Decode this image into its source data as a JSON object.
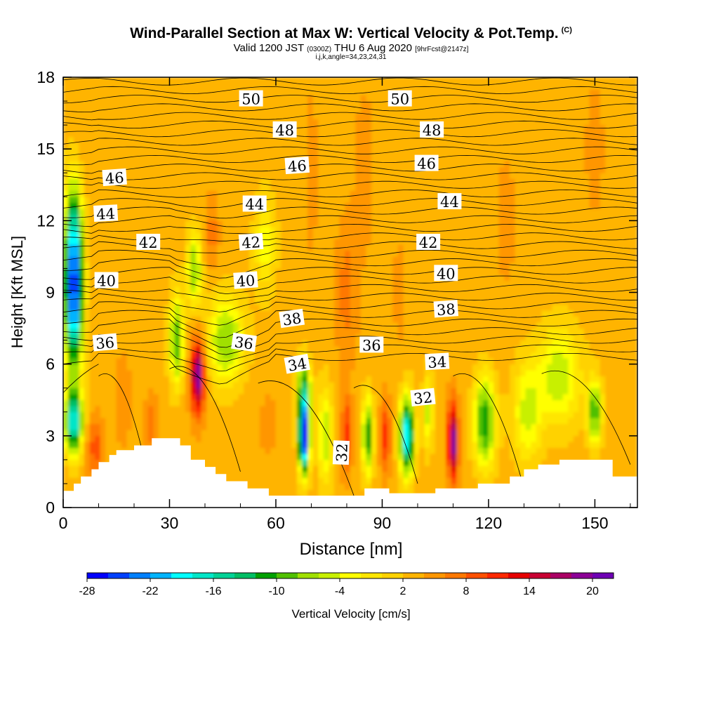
{
  "title": {
    "main": "Wind-Parallel Section at Max W: Vertical Velocity & Pot.Temp.",
    "copyright": "(C)",
    "valid_pre": "Valid 1200 JST",
    "valid_utc": "(0300Z)",
    "valid_date": "THU 6 Aug 2020",
    "forecast": "[9hrFcst@2147z]",
    "indices": "i,j,k,angle=34,23,24,31"
  },
  "chart_data": {
    "type": "contour",
    "xlabel": "Distance [nm]",
    "ylabel": "Height [Kft MSL]",
    "xlim": [
      0,
      162
    ],
    "ylim": [
      0,
      18
    ],
    "xticks": [
      0,
      30,
      60,
      90,
      120,
      150
    ],
    "yticks": [
      0,
      3,
      6,
      9,
      12,
      15,
      18
    ],
    "colorbar": {
      "label": "Vertical Velocity [cm/s]",
      "min": -28,
      "max": 22,
      "step": 2,
      "tick_labels": [
        -28,
        -22,
        -16,
        -10,
        -4,
        2,
        8,
        14,
        20
      ],
      "colors": [
        "#0000ff",
        "#0040ff",
        "#0080ff",
        "#00b4ff",
        "#00ffff",
        "#00e6c8",
        "#00d296",
        "#00be64",
        "#00a000",
        "#50c000",
        "#a0e000",
        "#c8f000",
        "#ffff00",
        "#ffe600",
        "#ffd200",
        "#ffb400",
        "#ff9600",
        "#ff7800",
        "#ff5000",
        "#ff2800",
        "#e60000",
        "#c80032",
        "#aa0064",
        "#8c0096",
        "#6e00b4"
      ]
    },
    "terrain_kft": [
      [
        0,
        0.7
      ],
      [
        3,
        0.7
      ],
      [
        3,
        1
      ],
      [
        5,
        1
      ],
      [
        5,
        1.3
      ],
      [
        8,
        1.3
      ],
      [
        8,
        1.6
      ],
      [
        10,
        1.6
      ],
      [
        10,
        1.9
      ],
      [
        13,
        1.9
      ],
      [
        13,
        2.2
      ],
      [
        15,
        2.2
      ],
      [
        15,
        2.4
      ],
      [
        20,
        2.4
      ],
      [
        20,
        2.6
      ],
      [
        25,
        2.6
      ],
      [
        25,
        2.9
      ],
      [
        33,
        2.9
      ],
      [
        33,
        2.6
      ],
      [
        36,
        2.6
      ],
      [
        36,
        2
      ],
      [
        40,
        2
      ],
      [
        40,
        1.7
      ],
      [
        43,
        1.7
      ],
      [
        43,
        1.4
      ],
      [
        46,
        1.4
      ],
      [
        46,
        1.1
      ],
      [
        52,
        1.1
      ],
      [
        52,
        0.8
      ],
      [
        58,
        0.8
      ],
      [
        58,
        0.5
      ],
      [
        85,
        0.5
      ],
      [
        85,
        0.8
      ],
      [
        92,
        0.8
      ],
      [
        92,
        0.6
      ],
      [
        105,
        0.6
      ],
      [
        105,
        0.8
      ],
      [
        117,
        0.8
      ],
      [
        117,
        1
      ],
      [
        126,
        1
      ],
      [
        126,
        1.3
      ],
      [
        130,
        1.3
      ],
      [
        130,
        1.6
      ],
      [
        134,
        1.6
      ],
      [
        134,
        1.8
      ],
      [
        140,
        1.8
      ],
      [
        140,
        2
      ],
      [
        155,
        2
      ],
      [
        155,
        1.3
      ],
      [
        162,
        1.3
      ]
    ],
    "w_field": [
      {
        "x": 3,
        "y": 8.5,
        "w": -22,
        "sx": 2.5,
        "sy": 2.8
      },
      {
        "x": 3,
        "y": 11.5,
        "w": -12,
        "sx": 2.5,
        "sy": 2.5
      },
      {
        "x": 3,
        "y": 3.6,
        "w": -18,
        "sx": 2.5,
        "sy": 1.3
      },
      {
        "x": 9,
        "y": 2.5,
        "w": 9,
        "sx": 2.5,
        "sy": 1.3
      },
      {
        "x": 17,
        "y": 4.5,
        "w": 6,
        "sx": 2,
        "sy": 2
      },
      {
        "x": 25,
        "y": 3.5,
        "w": 7,
        "sx": 2,
        "sy": 1.3
      },
      {
        "x": 32,
        "y": 7,
        "w": -10,
        "sx": 2,
        "sy": 1.8
      },
      {
        "x": 38,
        "y": 5.5,
        "w": 20,
        "sx": 2,
        "sy": 1.6
      },
      {
        "x": 37,
        "y": 10,
        "w": -8,
        "sx": 2,
        "sy": 1.5
      },
      {
        "x": 46,
        "y": 7,
        "w": -8,
        "sx": 5,
        "sy": 1.8
      },
      {
        "x": 42,
        "y": 11.5,
        "w": 7,
        "sx": 2,
        "sy": 1.5
      },
      {
        "x": 68,
        "y": 3,
        "w": -28,
        "sx": 1.5,
        "sy": 1.5
      },
      {
        "x": 68,
        "y": 5,
        "w": -10,
        "sx": 2,
        "sy": 1.2
      },
      {
        "x": 74,
        "y": 3,
        "w": -6,
        "sx": 2,
        "sy": 2
      },
      {
        "x": 80,
        "y": 3,
        "w": 11,
        "sx": 1.5,
        "sy": 1.6
      },
      {
        "x": 86,
        "y": 3,
        "w": -12,
        "sx": 1.5,
        "sy": 1.6
      },
      {
        "x": 91,
        "y": 3,
        "w": 11,
        "sx": 1.5,
        "sy": 1.5
      },
      {
        "x": 97,
        "y": 3,
        "w": -20,
        "sx": 2,
        "sy": 1.6
      },
      {
        "x": 103,
        "y": 4,
        "w": -5,
        "sx": 1.5,
        "sy": 1.5
      },
      {
        "x": 110,
        "y": 2.8,
        "w": 20,
        "sx": 1.5,
        "sy": 1.6
      },
      {
        "x": 119,
        "y": 3.6,
        "w": -12,
        "sx": 3,
        "sy": 1.8
      },
      {
        "x": 131,
        "y": 4,
        "w": -5,
        "sx": 4,
        "sy": 2
      },
      {
        "x": 140,
        "y": 5.5,
        "w": -6,
        "sx": 6,
        "sy": 2
      },
      {
        "x": 150,
        "y": 4,
        "w": -10,
        "sx": 2,
        "sy": 1.3
      },
      {
        "x": 80,
        "y": 9,
        "w": 7,
        "sx": 3,
        "sy": 3
      },
      {
        "x": 70,
        "y": 14,
        "w": 5,
        "sx": 2,
        "sy": 4
      },
      {
        "x": 85,
        "y": 14,
        "w": 5,
        "sx": 3,
        "sy": 4
      },
      {
        "x": 95,
        "y": 9,
        "w": 5,
        "sx": 2,
        "sy": 2.5
      },
      {
        "x": 125,
        "y": 12,
        "w": 5,
        "sx": 3,
        "sy": 3
      },
      {
        "x": 150,
        "y": 15,
        "w": 5,
        "sx": 3,
        "sy": 3
      },
      {
        "x": 8,
        "y": 15.5,
        "w": 4,
        "sx": 4,
        "sy": 2
      },
      {
        "x": 57,
        "y": 11,
        "w": -3,
        "sx": 3,
        "sy": 2
      },
      {
        "x": 58,
        "y": 3.5,
        "w": 5,
        "sx": 3,
        "sy": 1.5
      }
    ],
    "theta_contour_labels": [
      {
        "value": "50",
        "x": 53,
        "y": 17.1,
        "angle": 0
      },
      {
        "value": "50",
        "x": 95,
        "y": 17.1,
        "angle": 0
      },
      {
        "value": "48",
        "x": 62.5,
        "y": 15.8,
        "angle": 0
      },
      {
        "value": "48",
        "x": 104,
        "y": 15.8,
        "angle": 0
      },
      {
        "value": "46",
        "x": 14.5,
        "y": 13.8,
        "angle": -4
      },
      {
        "value": "46",
        "x": 66,
        "y": 14.3,
        "angle": -4
      },
      {
        "value": "46",
        "x": 102.5,
        "y": 14.4,
        "angle": 0
      },
      {
        "value": "44",
        "x": 12,
        "y": 12.3,
        "angle": -3
      },
      {
        "value": "44",
        "x": 54,
        "y": 12.7,
        "angle": 0
      },
      {
        "value": "44",
        "x": 109,
        "y": 12.8,
        "angle": 0
      },
      {
        "value": "42",
        "x": 24,
        "y": 11.1,
        "angle": 0
      },
      {
        "value": "42",
        "x": 53,
        "y": 11.1,
        "angle": -4
      },
      {
        "value": "42",
        "x": 103,
        "y": 11.1,
        "angle": 0
      },
      {
        "value": "40",
        "x": 12.2,
        "y": 9.5,
        "angle": 0
      },
      {
        "value": "40",
        "x": 51.5,
        "y": 9.5,
        "angle": -4
      },
      {
        "value": "40",
        "x": 108,
        "y": 9.8,
        "angle": 0
      },
      {
        "value": "38",
        "x": 64.5,
        "y": 7.9,
        "angle": -8
      },
      {
        "value": "38",
        "x": 108,
        "y": 8.3,
        "angle": -4
      },
      {
        "value": "36",
        "x": 11.8,
        "y": 6.9,
        "angle": -5
      },
      {
        "value": "36",
        "x": 51,
        "y": 6.9,
        "angle": 8
      },
      {
        "value": "36",
        "x": 87,
        "y": 6.8,
        "angle": 0
      },
      {
        "value": "34",
        "x": 66,
        "y": 6,
        "angle": -10
      },
      {
        "value": "34",
        "x": 105.5,
        "y": 6.1,
        "angle": -3
      },
      {
        "value": "32",
        "x": 101.5,
        "y": 4.6,
        "angle": -6
      },
      {
        "value": "32",
        "x": 78.5,
        "y": 2.3,
        "angle": -88
      }
    ]
  }
}
